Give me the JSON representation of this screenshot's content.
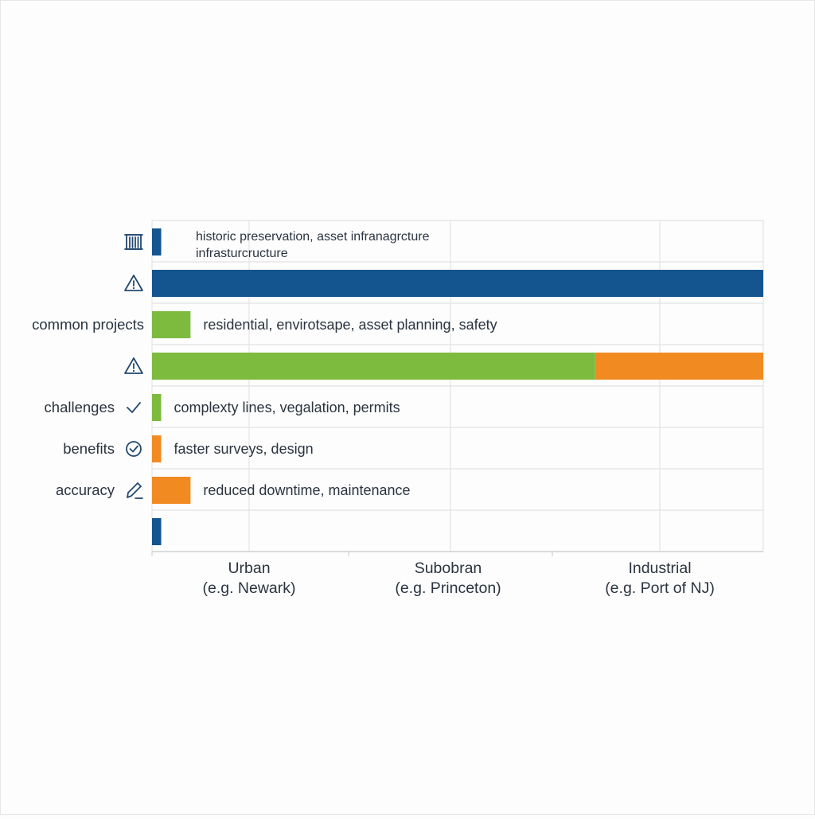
{
  "colors": {
    "blue": "#14548f",
    "green": "#7dbb3f",
    "orange": "#f28a22",
    "grid": "#e3e3e3",
    "text": "#2b3440",
    "icon": "#24496f"
  },
  "chart_data": {
    "type": "bar",
    "orientation": "horizontal",
    "stacked": true,
    "title": "",
    "xlabel": "",
    "ylabel": "",
    "grid": true,
    "legend": "none",
    "xlim": [
      0,
      100
    ],
    "categories": [
      {
        "label": "Urban",
        "sublabel": "(e.g. Newark)"
      },
      {
        "label": "Subobran",
        "sublabel": "(e.g. Princeton)"
      },
      {
        "label": "Industrial",
        "sublabel": "(e.g. Port of NJ)"
      }
    ],
    "rows": [
      {
        "label": "",
        "icon": "building-icon",
        "annotation": [
          "historic preservation, asset infranagrcture",
          "infrasturcructure"
        ],
        "segments": [
          {
            "color": "blue",
            "value": 1.5
          }
        ]
      },
      {
        "label": "",
        "icon": "warning-icon",
        "annotation": [],
        "segments": [
          {
            "color": "blue",
            "value": 100
          }
        ]
      },
      {
        "label": "common projects",
        "icon": "",
        "annotation": [
          "residential, envirotsape, asset planning, safety"
        ],
        "segments": [
          {
            "color": "green",
            "value": 6.3
          }
        ]
      },
      {
        "label": "",
        "icon": "warning-icon",
        "annotation": [],
        "segments": [
          {
            "color": "green",
            "value": 72.5
          },
          {
            "color": "orange",
            "value": 27.5
          }
        ]
      },
      {
        "label": "challenges",
        "icon": "check-icon",
        "annotation": [
          "complexty  lines, vegalation, permits"
        ],
        "segments": [
          {
            "color": "green",
            "value": 1.5
          }
        ]
      },
      {
        "label": "benefits",
        "icon": "check-circle-icon",
        "annotation": [
          "faster surveys, design"
        ],
        "segments": [
          {
            "color": "orange",
            "value": 1.5
          }
        ]
      },
      {
        "label": "accuracy",
        "icon": "pencil-icon",
        "annotation": [
          "reduced downtime, maintenance"
        ],
        "segments": [
          {
            "color": "orange",
            "value": 6.3
          }
        ]
      },
      {
        "label": "",
        "icon": "",
        "annotation": [],
        "segments": [
          {
            "color": "blue",
            "value": 1.5
          }
        ]
      }
    ]
  }
}
